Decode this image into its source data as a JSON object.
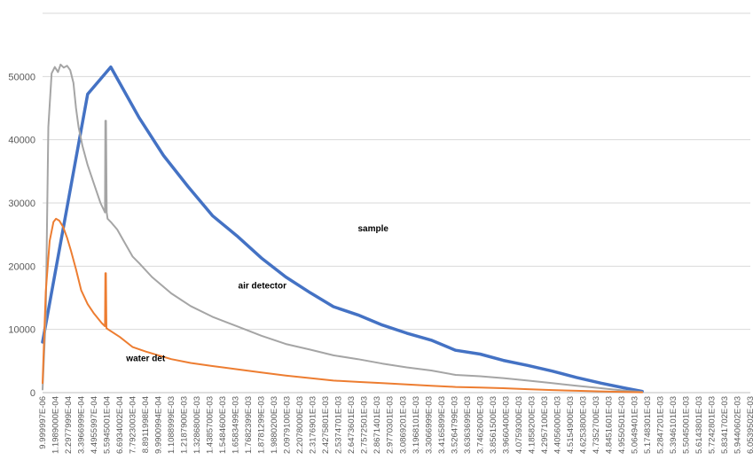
{
  "chart_data": {
    "type": "line",
    "title": "",
    "xlabel": "",
    "ylabel": "",
    "ylim": [
      0,
      60000
    ],
    "y_ticks": [
      0,
      10000,
      20000,
      30000,
      40000,
      50000
    ],
    "y_tick_labels": [
      "0",
      "10000",
      "20000",
      "30000",
      "40000",
      "50000"
    ],
    "grid": "horizontal",
    "x_tick_labels": [
      "9.999997E-06",
      "1.1989000E-04",
      "2.2977999E-04",
      "3.3966999E-04",
      "4.4955997E-04",
      "5.5945001E-04",
      "6.6934002E-04",
      "7.7923003E-04",
      "8.8911998E-04",
      "9.9900994E-04",
      "1.1088999E-03",
      "1.2187900E-03",
      "1.3286800E-03",
      "1.4385700E-03",
      "1.5484600E-03",
      "1.6583499E-03",
      "1.7682399E-03",
      "1.8781299E-03",
      "1.9880200E-03",
      "2.0979100E-03",
      "2.2078000E-03",
      "2.3176901E-03",
      "2.4275801E-03",
      "2.5374701E-03",
      "2.6473601E-03",
      "2.7572501E-03",
      "2.8671401E-03",
      "2.9770301E-03",
      "3.0869201E-03",
      "3.1968101E-03",
      "3.3066999E-03",
      "3.4165899E-03",
      "3.5264799E-03",
      "3.6363699E-03",
      "3.7462600E-03",
      "3.8561500E-03",
      "3.9660400E-03",
      "4.0759300E-03",
      "4.1858200E-03",
      "4.2957100E-03",
      "4.4056000E-03",
      "4.5154900E-03",
      "4.6253800E-03",
      "4.7352700E-03",
      "4.8451601E-03",
      "4.9550501E-03",
      "5.0649401E-03",
      "5.1748301E-03",
      "5.2847201E-03",
      "5.3946101E-03",
      "5.5045001E-03",
      "5.6143801E-03",
      "5.7242801E-03",
      "5.8341702E-03",
      "5.9440602E-03",
      "6.0539502E-03"
    ],
    "xlim": [
      0,
      55
    ],
    "annotations": [
      {
        "text": "sample",
        "x": 24.5,
        "y": 25500
      },
      {
        "text": "air detector",
        "x": 15.2,
        "y": 16500
      },
      {
        "text": "water det",
        "x": 6.5,
        "y": 5000
      }
    ],
    "series": [
      {
        "key": "sample",
        "color": "#4472c4",
        "width": 3.5,
        "points": [
          [
            0,
            8000
          ],
          [
            3.5,
            47200
          ],
          [
            5.3,
            51500
          ],
          [
            7.5,
            43500
          ],
          [
            9.4,
            37500
          ],
          [
            11.3,
            32600
          ],
          [
            13.2,
            28000
          ],
          [
            15.1,
            24800
          ],
          [
            17.0,
            21300
          ],
          [
            18.9,
            18300
          ],
          [
            20.8,
            15800
          ],
          [
            22.6,
            13600
          ],
          [
            24.5,
            12300
          ],
          [
            26.4,
            10700
          ],
          [
            28.3,
            9400
          ],
          [
            30.2,
            8300
          ],
          [
            32.1,
            6700
          ],
          [
            34.0,
            6100
          ],
          [
            35.8,
            5100
          ],
          [
            37.7,
            4300
          ],
          [
            39.6,
            3400
          ],
          [
            41.5,
            2400
          ],
          [
            43.4,
            1500
          ],
          [
            45.3,
            700
          ],
          [
            46.6,
            200
          ]
        ]
      },
      {
        "key": "air",
        "color": "#a5a5a5",
        "width": 2,
        "points": [
          [
            0,
            500
          ],
          [
            0.25,
            12000
          ],
          [
            0.45,
            42000
          ],
          [
            0.7,
            50500
          ],
          [
            0.95,
            51500
          ],
          [
            1.2,
            50700
          ],
          [
            1.4,
            51900
          ],
          [
            1.65,
            51400
          ],
          [
            1.9,
            51700
          ],
          [
            2.15,
            51000
          ],
          [
            2.4,
            49000
          ],
          [
            2.6,
            45000
          ],
          [
            2.8,
            42000
          ],
          [
            3.1,
            39000
          ],
          [
            3.5,
            36000
          ],
          [
            4.0,
            33000
          ],
          [
            4.5,
            30000
          ],
          [
            4.85,
            28500
          ],
          [
            4.88,
            43000
          ],
          [
            4.93,
            43000
          ],
          [
            4.98,
            28500
          ],
          [
            5.05,
            27500
          ],
          [
            5.3,
            27000
          ],
          [
            5.8,
            25800
          ],
          [
            6.3,
            24000
          ],
          [
            7.0,
            21500
          ],
          [
            7.5,
            20500
          ],
          [
            8.5,
            18300
          ],
          [
            10.0,
            15700
          ],
          [
            11.5,
            13700
          ],
          [
            13.2,
            12000
          ],
          [
            15.1,
            10500
          ],
          [
            17.0,
            9000
          ],
          [
            18.9,
            7700
          ],
          [
            20.8,
            6800
          ],
          [
            22.6,
            5900
          ],
          [
            24.5,
            5300
          ],
          [
            26.4,
            4600
          ],
          [
            28.3,
            4000
          ],
          [
            30.2,
            3500
          ],
          [
            32.1,
            2800
          ],
          [
            34.0,
            2600
          ],
          [
            35.8,
            2300
          ],
          [
            37.7,
            1900
          ],
          [
            39.6,
            1500
          ],
          [
            41.5,
            1100
          ],
          [
            43.4,
            700
          ],
          [
            45.3,
            300
          ],
          [
            46.6,
            100
          ]
        ]
      },
      {
        "key": "water",
        "color": "#ed7d31",
        "width": 2,
        "points": [
          [
            0,
            1500
          ],
          [
            0.25,
            16000
          ],
          [
            0.55,
            24000
          ],
          [
            0.85,
            27000
          ],
          [
            1.05,
            27500
          ],
          [
            1.3,
            27200
          ],
          [
            1.6,
            26200
          ],
          [
            1.9,
            24500
          ],
          [
            2.2,
            22500
          ],
          [
            2.6,
            19500
          ],
          [
            3.0,
            16200
          ],
          [
            3.5,
            14000
          ],
          [
            4.0,
            12500
          ],
          [
            4.6,
            11000
          ],
          [
            4.85,
            10500
          ],
          [
            4.88,
            18900
          ],
          [
            4.92,
            18900
          ],
          [
            4.96,
            10200
          ],
          [
            5.1,
            10000
          ],
          [
            6.0,
            8800
          ],
          [
            7.0,
            7200
          ],
          [
            8.0,
            6500
          ],
          [
            9.0,
            5900
          ],
          [
            10.0,
            5300
          ],
          [
            11.5,
            4700
          ],
          [
            13.2,
            4200
          ],
          [
            15.1,
            3700
          ],
          [
            17.0,
            3200
          ],
          [
            18.9,
            2700
          ],
          [
            20.8,
            2300
          ],
          [
            22.6,
            1900
          ],
          [
            24.5,
            1700
          ],
          [
            26.4,
            1500
          ],
          [
            28.3,
            1300
          ],
          [
            30.2,
            1100
          ],
          [
            32.1,
            900
          ],
          [
            34.0,
            800
          ],
          [
            35.8,
            700
          ],
          [
            37.7,
            550
          ],
          [
            39.6,
            400
          ],
          [
            41.5,
            300
          ],
          [
            43.4,
            200
          ],
          [
            45.3,
            100
          ],
          [
            46.6,
            50
          ]
        ]
      }
    ]
  }
}
